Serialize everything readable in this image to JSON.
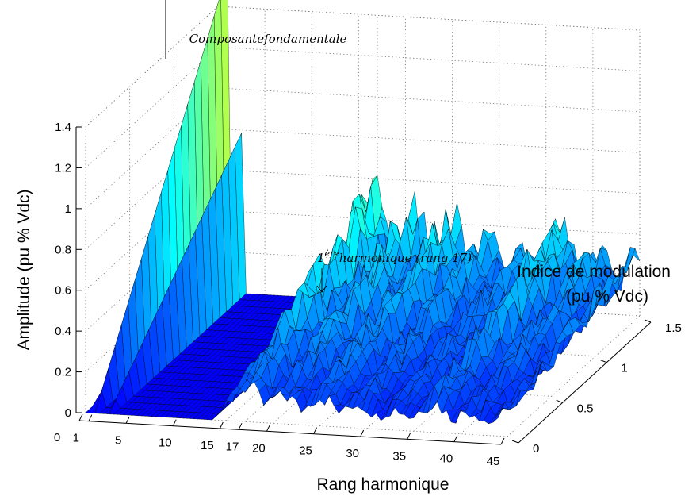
{
  "chart_data": {
    "type": "surface",
    "xlabel": "Rang harmonique",
    "ylabel": "Indice de modulation\n(pu % Vdc)",
    "zlabel": "Amplitude (pu % Vdc)",
    "x_ticks": [
      "0",
      "1",
      "5",
      "10",
      "15",
      "17",
      "20",
      "25",
      "30",
      "35",
      "40",
      "45"
    ],
    "x_tick_values": [
      0,
      1,
      5,
      10,
      15,
      17,
      20,
      25,
      30,
      35,
      40,
      45
    ],
    "y_ticks": [
      "0",
      "0.5",
      "1",
      "1.5"
    ],
    "y_tick_values": [
      0,
      0.5,
      1,
      1.5
    ],
    "z_ticks": [
      "0",
      "0.2",
      "0.4",
      "0.6",
      "0.8",
      "1",
      "1.2",
      "1.4"
    ],
    "z_tick_values": [
      0,
      0.2,
      0.4,
      0.6,
      0.8,
      1,
      1.2,
      1.4
    ],
    "xlim": [
      0,
      45
    ],
    "ylim": [
      0,
      1.5
    ],
    "zlim": [
      0,
      1.4
    ],
    "grid": true,
    "colormap": "jet",
    "annotations": [
      {
        "text": "Composantefondamentale",
        "x": 1,
        "y": 1.5,
        "z": 1.57
      },
      {
        "text_main": "harmonique (rang 17)",
        "text_prefix": "1",
        "text_sup": "ère",
        "x": 17,
        "y": 1.5,
        "z": 0.6
      }
    ],
    "surface_description": {
      "fundamental": {
        "x": 1,
        "amplitude_at_max_modulation": 1.57
      },
      "first_harmonic_rank": 17,
      "first_harmonic_peak": 0.62,
      "harmonic_clusters_at_ranks": [
        17,
        21,
        25,
        29,
        33,
        37,
        41,
        45
      ]
    }
  }
}
